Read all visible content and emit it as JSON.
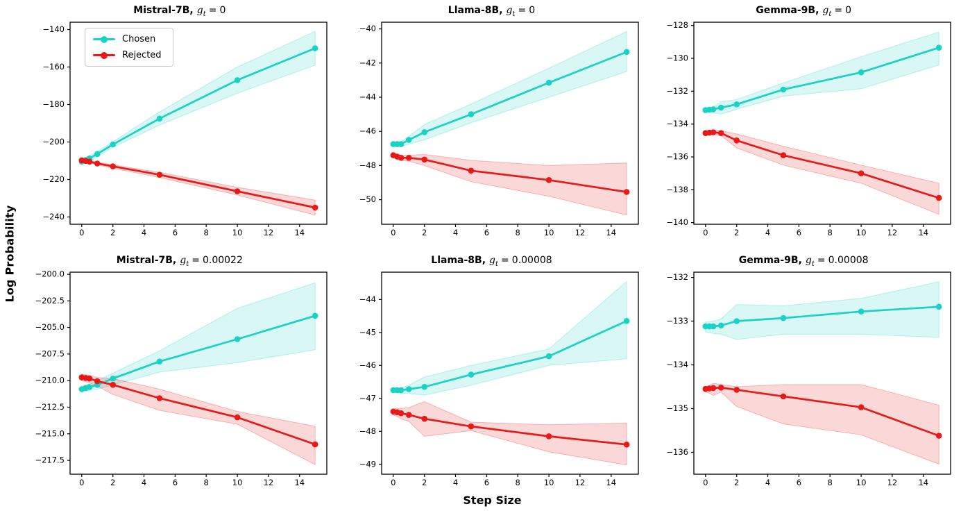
{
  "figure": {
    "ylabel": "Log Probability",
    "xlabel": "Step Size",
    "math": {
      "var": "g",
      "sub": "t",
      "eq": "="
    },
    "legend": {
      "items": [
        {
          "label": "Chosen",
          "color": "#1ad2c4"
        },
        {
          "label": "Rejected",
          "color": "#e81919"
        }
      ]
    },
    "colors": {
      "chosen_line": "#1ad2c4",
      "rejected_line": "#e81919",
      "axis": "#000000",
      "background": "#ffffff"
    }
  },
  "chart_data": [
    {
      "type": "line",
      "title_model": "Mistral-7B,",
      "gt_value": "0",
      "x": [
        0,
        0.25,
        0.5,
        1,
        2,
        5,
        10,
        15
      ],
      "xticks": [
        0,
        2,
        4,
        6,
        8,
        10,
        12,
        14
      ],
      "xlim": [
        -0.75,
        15.75
      ],
      "ylim": [
        -243.9,
        -136.1
      ],
      "yticks": [
        -140,
        -160,
        -180,
        -200,
        -220,
        -240
      ],
      "ytick_decimals": 0,
      "series": [
        {
          "name": "Chosen",
          "color": "#1ad2c4",
          "values": [
            -210.5,
            -209.6,
            -208.8,
            -206.4,
            -201.3,
            -187.5,
            -167.0,
            -150.0
          ],
          "band_upper": [
            -209.5,
            -208.8,
            -207.5,
            -205.0,
            -199.8,
            -184.0,
            -160.0,
            -141.0
          ],
          "band_lower": [
            -211.5,
            -210.7,
            -210.0,
            -208.0,
            -202.8,
            -191.0,
            -174.0,
            -159.0
          ]
        },
        {
          "name": "Rejected",
          "color": "#e81919",
          "values": [
            -209.8,
            -210.1,
            -210.5,
            -211.5,
            -213.0,
            -217.5,
            -226.3,
            -235.0
          ],
          "band_upper": [
            -209.0,
            -209.4,
            -209.8,
            -210.8,
            -212.2,
            -216.2,
            -224.2,
            -231.0
          ],
          "band_lower": [
            -210.6,
            -210.9,
            -211.2,
            -212.2,
            -214.0,
            -219.0,
            -228.3,
            -239.0
          ]
        }
      ]
    },
    {
      "type": "line",
      "title_model": "Llama-8B,",
      "gt_value": "0",
      "x": [
        0,
        0.25,
        0.5,
        1,
        2,
        5,
        10,
        15
      ],
      "xticks": [
        0,
        2,
        4,
        6,
        8,
        10,
        12,
        14
      ],
      "xlim": [
        -0.75,
        15.75
      ],
      "ylim": [
        -51.44,
        -39.61
      ],
      "yticks": [
        -40,
        -42,
        -44,
        -46,
        -48,
        -50
      ],
      "ytick_decimals": 0,
      "series": [
        {
          "name": "Chosen",
          "color": "#1ad2c4",
          "values": [
            -46.75,
            -46.75,
            -46.75,
            -46.5,
            -46.05,
            -45.0,
            -43.15,
            -41.35
          ],
          "band_upper": [
            -46.6,
            -46.6,
            -46.6,
            -46.3,
            -45.6,
            -44.4,
            -42.3,
            -40.15
          ],
          "band_lower": [
            -46.9,
            -46.9,
            -46.9,
            -46.75,
            -46.5,
            -45.5,
            -44.0,
            -42.5
          ]
        },
        {
          "name": "Rejected",
          "color": "#e81919",
          "values": [
            -47.4,
            -47.48,
            -47.55,
            -47.55,
            -47.65,
            -48.3,
            -48.85,
            -49.55
          ],
          "band_upper": [
            -47.3,
            -47.35,
            -47.4,
            -47.4,
            -47.35,
            -47.7,
            -48.0,
            -47.85
          ],
          "band_lower": [
            -47.55,
            -47.6,
            -47.7,
            -47.75,
            -48.0,
            -48.95,
            -49.8,
            -50.9
          ]
        }
      ]
    },
    {
      "type": "line",
      "title_model": "Gemma-9B,",
      "gt_value": "0",
      "x": [
        0,
        0.25,
        0.5,
        1,
        2,
        5,
        10,
        15
      ],
      "xticks": [
        0,
        2,
        4,
        6,
        8,
        10,
        12,
        14
      ],
      "xlim": [
        -0.75,
        15.75
      ],
      "ylim": [
        -140.1,
        -127.8
      ],
      "yticks": [
        -128,
        -130,
        -132,
        -134,
        -136,
        -138,
        -140
      ],
      "ytick_decimals": 0,
      "series": [
        {
          "name": "Chosen",
          "color": "#1ad2c4",
          "values": [
            -133.15,
            -133.12,
            -133.1,
            -133.0,
            -132.8,
            -131.9,
            -130.85,
            -129.35
          ],
          "band_upper": [
            -133.0,
            -133.0,
            -132.95,
            -132.65,
            -132.5,
            -131.5,
            -129.9,
            -128.4
          ],
          "band_lower": [
            -133.3,
            -133.3,
            -133.3,
            -133.4,
            -133.1,
            -132.3,
            -131.85,
            -130.4
          ]
        },
        {
          "name": "Rejected",
          "color": "#e81919",
          "values": [
            -134.55,
            -134.52,
            -134.5,
            -134.55,
            -135.0,
            -135.9,
            -137.0,
            -138.5
          ],
          "band_upper": [
            -134.45,
            -134.4,
            -134.35,
            -134.4,
            -134.6,
            -135.35,
            -136.5,
            -137.6
          ],
          "band_lower": [
            -134.7,
            -134.68,
            -134.65,
            -134.7,
            -135.45,
            -136.5,
            -137.6,
            -139.5
          ]
        }
      ]
    },
    {
      "type": "line",
      "title_model": "Mistral-7B,",
      "gt_value": "0.00022",
      "x": [
        0,
        0.25,
        0.5,
        1,
        2,
        5,
        10,
        15
      ],
      "xticks": [
        0,
        2,
        4,
        6,
        8,
        10,
        12,
        14
      ],
      "xlim": [
        -0.75,
        15.75
      ],
      "ylim": [
        -218.8,
        -199.8
      ],
      "yticks": [
        -200.0,
        -202.5,
        -205.0,
        -207.5,
        -210.0,
        -212.5,
        -215.0,
        -217.5
      ],
      "ytick_decimals": 1,
      "series": [
        {
          "name": "Chosen",
          "color": "#1ad2c4",
          "values": [
            -210.8,
            -210.7,
            -210.6,
            -210.4,
            -209.8,
            -208.2,
            -206.1,
            -203.9
          ],
          "band_upper": [
            -210.5,
            -210.4,
            -210.3,
            -210.0,
            -209.3,
            -207.2,
            -203.2,
            -200.8
          ],
          "band_lower": [
            -211.1,
            -211.0,
            -210.9,
            -210.8,
            -210.4,
            -209.2,
            -208.3,
            -207.1
          ]
        },
        {
          "name": "Rejected",
          "color": "#e81919",
          "values": [
            -209.7,
            -209.75,
            -209.8,
            -210.05,
            -210.4,
            -211.65,
            -213.45,
            -216.0
          ],
          "band_upper": [
            -209.4,
            -209.45,
            -209.5,
            -209.7,
            -209.8,
            -210.8,
            -212.9,
            -214.3
          ],
          "band_lower": [
            -210.0,
            -210.1,
            -210.2,
            -210.5,
            -211.3,
            -212.8,
            -214.1,
            -217.9
          ]
        }
      ]
    },
    {
      "type": "line",
      "title_model": "Llama-8B,",
      "gt_value": "0.00008",
      "x": [
        0,
        0.25,
        0.5,
        1,
        2,
        5,
        10,
        15
      ],
      "xticks": [
        0,
        2,
        4,
        6,
        8,
        10,
        12,
        14
      ],
      "xlim": [
        -0.75,
        15.75
      ],
      "ylim": [
        -49.3,
        -43.17
      ],
      "yticks": [
        -44,
        -45,
        -46,
        -47,
        -48,
        -49
      ],
      "ytick_decimals": 0,
      "series": [
        {
          "name": "Chosen",
          "color": "#1ad2c4",
          "values": [
            -46.75,
            -46.75,
            -46.75,
            -46.72,
            -46.65,
            -46.28,
            -45.72,
            -44.65
          ],
          "band_upper": [
            -46.7,
            -46.7,
            -46.68,
            -46.6,
            -46.35,
            -46.0,
            -45.5,
            -43.45
          ],
          "band_lower": [
            -46.82,
            -46.83,
            -46.85,
            -46.85,
            -46.9,
            -46.6,
            -46.0,
            -45.8
          ]
        },
        {
          "name": "Rejected",
          "color": "#e81919",
          "values": [
            -47.4,
            -47.42,
            -47.45,
            -47.5,
            -47.62,
            -47.85,
            -48.15,
            -48.4
          ],
          "band_upper": [
            -47.32,
            -47.3,
            -47.3,
            -47.28,
            -47.1,
            -47.72,
            -47.8,
            -47.75
          ],
          "band_lower": [
            -47.5,
            -47.55,
            -47.62,
            -47.7,
            -48.15,
            -47.98,
            -48.62,
            -49.02
          ]
        }
      ]
    },
    {
      "type": "line",
      "title_model": "Gemma-9B,",
      "gt_value": "0.00008",
      "x": [
        0,
        0.25,
        0.5,
        1,
        2,
        5,
        10,
        15
      ],
      "xticks": [
        0,
        2,
        4,
        6,
        8,
        10,
        12,
        14
      ],
      "xlim": [
        -0.75,
        15.75
      ],
      "ylim": [
        -136.5,
        -131.88
      ],
      "yticks": [
        -132,
        -133,
        -134,
        -135,
        -136
      ],
      "ytick_decimals": 0,
      "series": [
        {
          "name": "Chosen",
          "color": "#1ad2c4",
          "values": [
            -133.12,
            -133.12,
            -133.12,
            -133.1,
            -133.0,
            -132.93,
            -132.78,
            -132.67
          ],
          "band_upper": [
            -133.02,
            -133.02,
            -133.0,
            -132.95,
            -132.62,
            -132.65,
            -132.48,
            -132.1
          ],
          "band_lower": [
            -133.25,
            -133.26,
            -133.28,
            -133.3,
            -133.42,
            -133.3,
            -133.3,
            -133.37
          ]
        },
        {
          "name": "Rejected",
          "color": "#e81919",
          "values": [
            -134.55,
            -134.54,
            -134.53,
            -134.52,
            -134.57,
            -134.72,
            -134.97,
            -135.62
          ],
          "band_upper": [
            -134.5,
            -134.47,
            -134.42,
            -134.45,
            -134.5,
            -134.45,
            -134.45,
            -134.92
          ],
          "band_lower": [
            -134.62,
            -134.65,
            -134.7,
            -134.62,
            -134.95,
            -135.35,
            -135.6,
            -136.27
          ]
        }
      ]
    }
  ]
}
